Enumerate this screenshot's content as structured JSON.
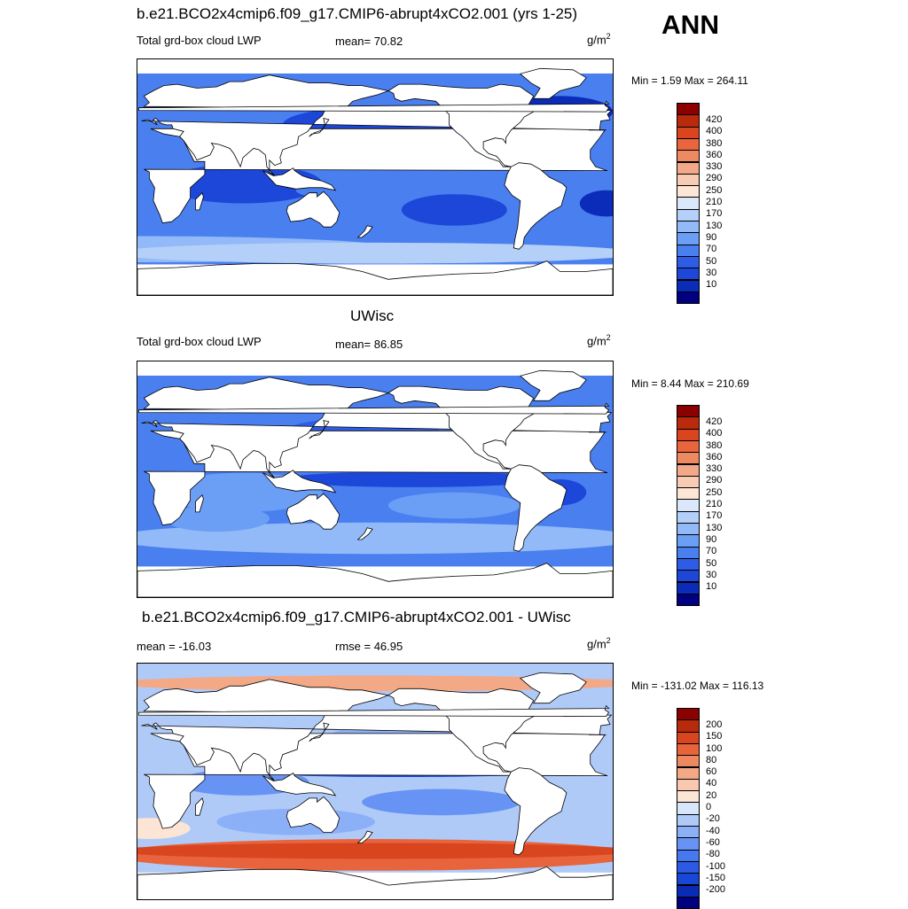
{
  "season": "ANN",
  "colors": {
    "abs_scale": [
      "#000080",
      "#0b2cb8",
      "#1c47d8",
      "#2f5ce6",
      "#4a7ff0",
      "#6b9ef5",
      "#93baf8",
      "#b5d0f8",
      "#dbe8fb",
      "#fde6d6",
      "#f8ccb2",
      "#f3a989",
      "#ee8a62",
      "#e8653e",
      "#da4520",
      "#b92a0c",
      "#8b0000"
    ],
    "diff_scale": [
      "#00007e",
      "#0a2bb5",
      "#1846d6",
      "#2b5be5",
      "#4678ef",
      "#6794f4",
      "#8cb0f7",
      "#b0caf8",
      "#d8e6fb",
      "#fde5d5",
      "#f8c9ae",
      "#f3a886",
      "#ee8861",
      "#e8643c",
      "#d9451f",
      "#b72a0c",
      "#8b0000"
    ]
  },
  "panels": [
    {
      "title": "b.e21.BCO2x4cmip6.f09_g17.CMIP6-abrupt4xCO2.001 (yrs 1-25)",
      "left_label": "Total grd-box cloud LWP",
      "mid_label": "mean=  70.82",
      "units_base": "g/m",
      "units_exp": "2",
      "minmax": "Min =   1.59 Max = 264.11",
      "colorbar_labels": [
        "420",
        "400",
        "380",
        "360",
        "330",
        "290",
        "250",
        "210",
        "170",
        "130",
        "90",
        "70",
        "50",
        "30",
        "10"
      ]
    },
    {
      "title": "UWisc",
      "left_label": "Total grd-box cloud LWP",
      "mid_label": "mean=  86.85",
      "units_base": "g/m",
      "units_exp": "2",
      "minmax": "Min =   8.44 Max = 210.69",
      "colorbar_labels": [
        "420",
        "400",
        "380",
        "360",
        "330",
        "290",
        "250",
        "210",
        "170",
        "130",
        "90",
        "70",
        "50",
        "30",
        "10"
      ]
    },
    {
      "title": "b.e21.BCO2x4cmip6.f09_g17.CMIP6-abrupt4xCO2.001 - UWisc",
      "left_label": "mean = -16.03",
      "mid_label": "rmse =  46.95",
      "units_base": "g/m",
      "units_exp": "2",
      "minmax": "Min = -131.02 Max = 116.13",
      "colorbar_labels": [
        "200",
        "150",
        "100",
        "80",
        "60",
        "40",
        "20",
        "0",
        "-20",
        "-40",
        "-60",
        "-80",
        "-100",
        "-150",
        "-200"
      ]
    }
  ],
  "chart_data": [
    {
      "type": "heatmap",
      "title": "b.e21.BCO2x4cmip6.f09_g17.CMIP6-abrupt4xCO2.001 (yrs 1-25)",
      "variable": "Total grd-box cloud LWP",
      "units": "g/m2",
      "mean": 70.82,
      "min": 1.59,
      "max": 264.11,
      "contour_levels": [
        10,
        30,
        50,
        70,
        90,
        130,
        170,
        210,
        250,
        290,
        330,
        360,
        380,
        400,
        420
      ]
    },
    {
      "type": "heatmap",
      "title": "UWisc",
      "variable": "Total grd-box cloud LWP",
      "units": "g/m2",
      "mean": 86.85,
      "min": 8.44,
      "max": 210.69,
      "contour_levels": [
        10,
        30,
        50,
        70,
        90,
        130,
        170,
        210,
        250,
        290,
        330,
        360,
        380,
        400,
        420
      ]
    },
    {
      "type": "heatmap",
      "title": "b.e21.BCO2x4cmip6.f09_g17.CMIP6-abrupt4xCO2.001 - UWisc",
      "units": "g/m2",
      "mean": -16.03,
      "rmse": 46.95,
      "min": -131.02,
      "max": 116.13,
      "contour_levels": [
        -200,
        -150,
        -100,
        -80,
        -60,
        -40,
        -20,
        0,
        20,
        40,
        60,
        80,
        100,
        150,
        200
      ]
    }
  ]
}
